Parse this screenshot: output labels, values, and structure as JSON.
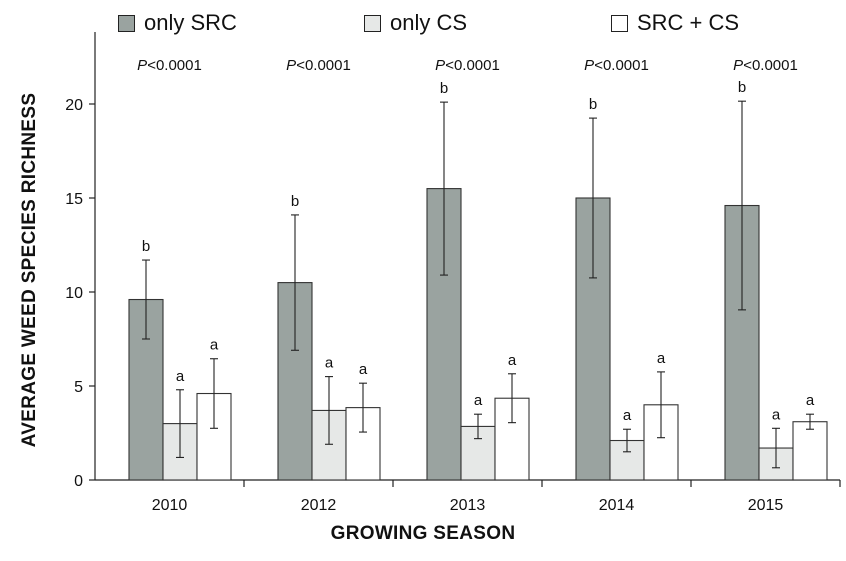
{
  "chart_data": {
    "type": "bar",
    "title": "",
    "xlabel": "GROWING SEASON",
    "ylabel": "AVERAGE WEED SPECIES RICHNESS",
    "ylim": [
      0,
      22
    ],
    "yticks": [
      0,
      5,
      10,
      15,
      20
    ],
    "grid": false,
    "legend_position": "top",
    "categories": [
      "2010",
      "2012",
      "2013",
      "2014",
      "2015"
    ],
    "p_values": [
      "<0.0001",
      "<0.0001",
      "<0.0001",
      "<0.0001",
      "<0.0001"
    ],
    "p_prefix": "P",
    "series": [
      {
        "name": "only SRC",
        "color": "#9aa3a0",
        "values": [
          9.6,
          10.5,
          15.5,
          15.0,
          14.6
        ],
        "error": [
          2.1,
          3.6,
          4.6,
          4.25,
          5.55
        ],
        "letters": [
          "b",
          "b",
          "b",
          "b",
          "b"
        ]
      },
      {
        "name": "only CS",
        "color": "#e6e8e7",
        "values": [
          3.0,
          3.7,
          2.85,
          2.1,
          1.7
        ],
        "error": [
          1.8,
          1.8,
          0.65,
          0.6,
          1.05
        ],
        "letters": [
          "a",
          "a",
          "a",
          "a",
          "a"
        ]
      },
      {
        "name": "SRC + CS",
        "color": "#ffffff",
        "values": [
          4.6,
          3.85,
          4.35,
          4.0,
          3.1
        ],
        "error": [
          1.85,
          1.3,
          1.3,
          1.75,
          0.4
        ],
        "letters": [
          "a",
          "a",
          "a",
          "a",
          "a"
        ]
      }
    ]
  }
}
